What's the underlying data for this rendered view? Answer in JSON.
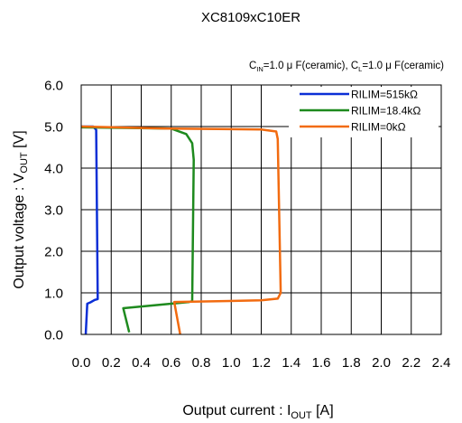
{
  "chart_data": {
    "type": "line",
    "title": "XC8109xC10ER",
    "subtitle": {
      "cin_main": "C",
      "cin_sub": "IN",
      "cin_rest": "=1.0 μ F(ceramic), ",
      "cl_main": "C",
      "cl_sub": "L",
      "cl_rest": "=1.0 μ F(ceramic)"
    },
    "xlabel": {
      "main": "Output current : I",
      "sub": "OUT",
      "unit": " [A]"
    },
    "ylabel": {
      "main": "Output voltage : V",
      "sub": "OUT",
      "unit": " [V]"
    },
    "xlim": [
      0,
      2.4
    ],
    "ylim": [
      0,
      6
    ],
    "x_ticks": [
      "0.0",
      "0.2",
      "0.4",
      "0.6",
      "0.8",
      "1.0",
      "1.2",
      "1.4",
      "1.6",
      "1.8",
      "2.0",
      "2.2",
      "2.4"
    ],
    "y_ticks": [
      "0.0",
      "1.0",
      "2.0",
      "3.0",
      "4.0",
      "5.0",
      "6.0"
    ],
    "grid": true,
    "legend_position": "top-right",
    "series": [
      {
        "name": "RILIM=515kΩ",
        "color": "#0b2fd6",
        "points": [
          [
            0.0,
            5.0
          ],
          [
            0.08,
            5.0
          ],
          [
            0.1,
            4.92
          ],
          [
            0.11,
            0.85
          ],
          [
            0.09,
            0.83
          ],
          [
            0.06,
            0.77
          ],
          [
            0.04,
            0.74
          ],
          [
            0.03,
            0.0
          ]
        ]
      },
      {
        "name": "RILIM=18.4kΩ",
        "color": "#1e8a1e",
        "points": [
          [
            0.0,
            4.98
          ],
          [
            0.6,
            4.95
          ],
          [
            0.7,
            4.82
          ],
          [
            0.74,
            4.6
          ],
          [
            0.75,
            4.2
          ],
          [
            0.74,
            0.8
          ],
          [
            0.72,
            0.78
          ],
          [
            0.28,
            0.63
          ],
          [
            0.32,
            0.05
          ]
        ]
      },
      {
        "name": "RILIM=0kΩ",
        "color": "#f26b10",
        "points": [
          [
            0.0,
            5.0
          ],
          [
            0.58,
            4.95
          ],
          [
            1.2,
            4.93
          ],
          [
            1.3,
            4.88
          ],
          [
            1.31,
            4.7
          ],
          [
            1.33,
            1.0
          ],
          [
            1.31,
            0.86
          ],
          [
            1.2,
            0.82
          ],
          [
            0.62,
            0.78
          ],
          [
            0.66,
            0.0
          ]
        ]
      }
    ]
  }
}
